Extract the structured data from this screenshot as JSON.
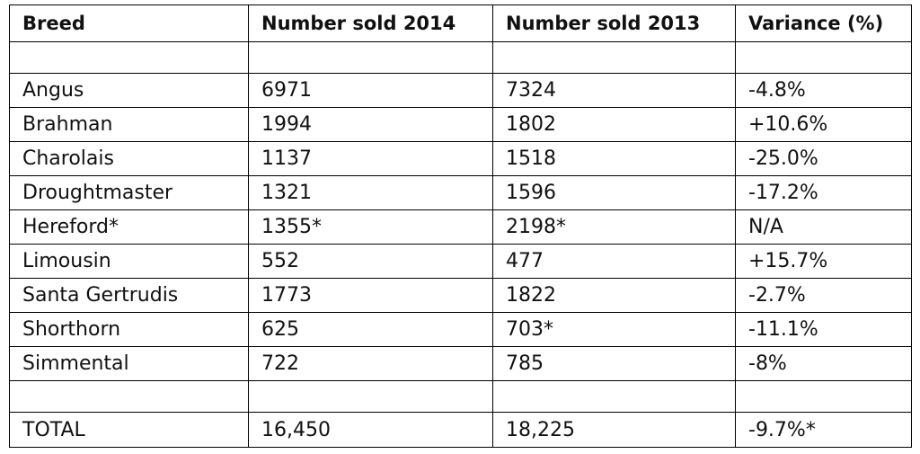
{
  "table": {
    "headers": [
      "Breed",
      "Number sold 2014",
      "Number sold 2013",
      "Variance (%)"
    ],
    "rows": [
      [
        "",
        "",
        "",
        ""
      ],
      [
        "Angus",
        "6971",
        "7324",
        "-4.8%"
      ],
      [
        "Brahman",
        "1994",
        "1802",
        "+10.6%"
      ],
      [
        "Charolais",
        "1137",
        "1518",
        "-25.0%"
      ],
      [
        "Droughtmaster",
        "1321",
        "1596",
        "-17.2%"
      ],
      [
        "Hereford*",
        "1355*",
        "2198*",
        "N/A"
      ],
      [
        "Limousin",
        "552",
        "477",
        "+15.7%"
      ],
      [
        "Santa Gertrudis",
        "1773",
        "1822",
        "-2.7%"
      ],
      [
        "Shorthorn",
        "625",
        "703*",
        "-11.1%"
      ],
      [
        "Simmental",
        "722",
        "785",
        "-8%"
      ],
      [
        "",
        "",
        "",
        ""
      ],
      [
        "TOTAL",
        "16,450",
        "18,225",
        "-9.7%*"
      ]
    ]
  }
}
